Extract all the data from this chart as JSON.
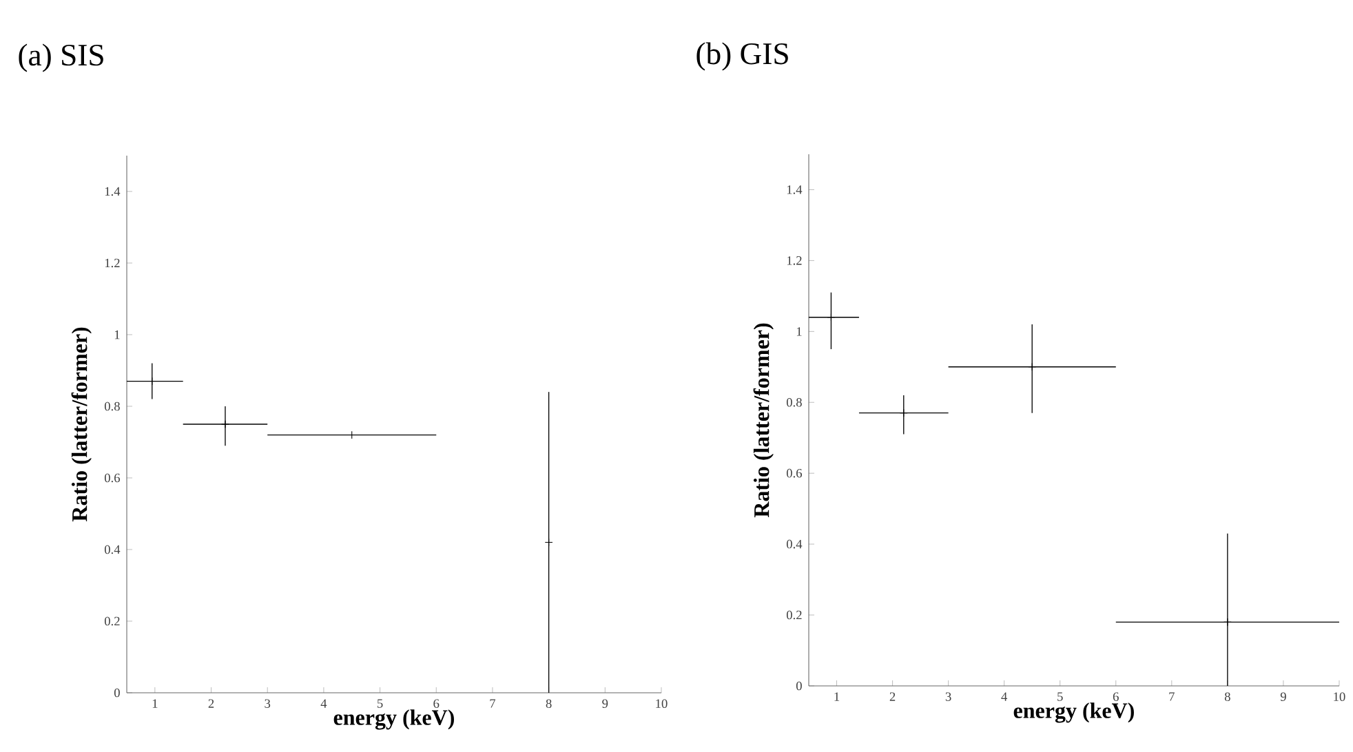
{
  "chart_data": [
    {
      "type": "scatter",
      "title": "(a) SIS",
      "xlabel": "energy (keV)",
      "ylabel": "Ratio (latter/former)",
      "xlim": [
        0.5,
        10
      ],
      "ylim": [
        0,
        1.5
      ],
      "xticks": [
        1,
        2,
        3,
        4,
        5,
        6,
        7,
        8,
        9,
        10
      ],
      "yticks": [
        0,
        0.2,
        0.4,
        0.6,
        0.8,
        1,
        1.2,
        1.4
      ],
      "series": [
        {
          "color": "#000000",
          "x": [
            0.95,
            2.25,
            4.5,
            8
          ],
          "values": [
            0.87,
            0.75,
            0.72,
            0.42
          ],
          "errors": [
            [
              0.82,
              0.92
            ],
            [
              0.69,
              0.8
            ],
            null,
            [
              0,
              0.84
            ]
          ],
          "xerrors": [
            [
              0.5,
              1.5
            ],
            [
              1.5,
              3
            ],
            [
              3,
              6
            ],
            null
          ]
        }
      ]
    },
    {
      "type": "scatter",
      "title": "(b) GIS",
      "xlabel": "energy (keV)",
      "ylabel": "Ratio (latter/former)",
      "xlim": [
        0.5,
        10
      ],
      "ylim": [
        0,
        1.5
      ],
      "xticks": [
        1,
        2,
        3,
        4,
        5,
        6,
        7,
        8,
        9,
        10
      ],
      "yticks": [
        0,
        0.2,
        0.4,
        0.6,
        0.8,
        1,
        1.2,
        1.4
      ],
      "series": [
        {
          "color": "#000000",
          "x": [
            0.9,
            2.2,
            4.5,
            8
          ],
          "values": [
            1.04,
            0.77,
            0.9,
            0.18
          ],
          "errors": [
            [
              0.95,
              1.11
            ],
            [
              0.71,
              0.82
            ],
            [
              0.77,
              1.02
            ],
            [
              0,
              0.43
            ]
          ],
          "xerrors": [
            [
              0.5,
              1.4
            ],
            [
              1.4,
              3
            ],
            [
              3,
              6
            ],
            [
              6,
              10
            ]
          ]
        }
      ]
    }
  ]
}
